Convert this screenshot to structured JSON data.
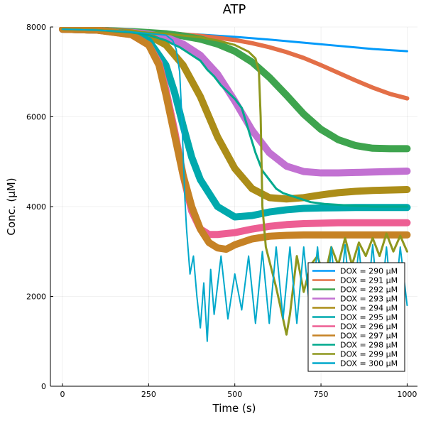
{
  "chart_data": {
    "type": "line",
    "title": "ATP",
    "xlabel": "Time (s)",
    "ylabel": "Conc. (µM)",
    "xlim": [
      -35,
      1030
    ],
    "ylim": [
      0,
      8000
    ],
    "xticks": [
      0,
      250,
      500,
      750,
      1000
    ],
    "yticks": [
      0,
      2000,
      4000,
      6000,
      8000
    ],
    "xtick_labels": [
      "0",
      "250",
      "500",
      "750",
      "1000"
    ],
    "ytick_labels": [
      "0",
      "2000",
      "4000",
      "6000",
      "8000"
    ],
    "grid": true,
    "legend_position": "bottom-right",
    "series": [
      {
        "name": "DOX = 290 µM",
        "color": "#009AFA",
        "width": 3,
        "x": [
          0,
          100,
          200,
          300,
          400,
          500,
          600,
          700,
          800,
          900,
          1000
        ],
        "y": [
          7950,
          7930,
          7900,
          7870,
          7830,
          7780,
          7720,
          7650,
          7580,
          7510,
          7460
        ]
      },
      {
        "name": "DOX = 291 µM",
        "color": "#E36F47",
        "width": 6,
        "x": [
          0,
          100,
          200,
          300,
          400,
          450,
          500,
          550,
          600,
          650,
          700,
          750,
          800,
          850,
          900,
          950,
          1000
        ],
        "y": [
          7950,
          7930,
          7910,
          7870,
          7800,
          7760,
          7710,
          7640,
          7550,
          7440,
          7310,
          7150,
          6980,
          6810,
          6650,
          6510,
          6410
        ]
      },
      {
        "name": "DOX = 292 µM",
        "color": "#3EA44E",
        "width": 10,
        "x": [
          0,
          100,
          200,
          300,
          350,
          400,
          450,
          500,
          550,
          600,
          650,
          700,
          750,
          800,
          850,
          900,
          950,
          1000
        ],
        "y": [
          7950,
          7930,
          7900,
          7850,
          7800,
          7730,
          7620,
          7460,
          7220,
          6880,
          6480,
          6060,
          5720,
          5490,
          5360,
          5300,
          5290,
          5290
        ]
      },
      {
        "name": "DOX = 293 µM",
        "color": "#C271D2",
        "width": 10,
        "x": [
          0,
          100,
          200,
          250,
          300,
          350,
          400,
          450,
          500,
          550,
          600,
          650,
          700,
          750,
          800,
          850,
          900,
          950,
          1000
        ],
        "y": [
          7950,
          7930,
          7880,
          7840,
          7770,
          7620,
          7370,
          6950,
          6350,
          5700,
          5200,
          4900,
          4780,
          4750,
          4750,
          4760,
          4770,
          4780,
          4790
        ]
      },
      {
        "name": "DOX = 294 µM",
        "color": "#AC8D18",
        "width": 10,
        "x": [
          0,
          100,
          200,
          250,
          300,
          350,
          400,
          450,
          500,
          550,
          600,
          650,
          700,
          750,
          800,
          850,
          900,
          950,
          1000
        ],
        "y": [
          7950,
          7930,
          7870,
          7810,
          7600,
          7150,
          6450,
          5550,
          4850,
          4400,
          4200,
          4170,
          4200,
          4260,
          4310,
          4340,
          4360,
          4370,
          4380
        ]
      },
      {
        "name": "DOX = 295 µM",
        "color": "#00A9AD",
        "width": 10,
        "x": [
          0,
          100,
          200,
          250,
          300,
          325,
          350,
          375,
          400,
          450,
          500,
          550,
          600,
          650,
          700,
          750,
          800,
          850,
          900,
          950,
          1000
        ],
        "y": [
          7950,
          7930,
          7840,
          7700,
          7150,
          6550,
          5800,
          5100,
          4600,
          4000,
          3770,
          3800,
          3880,
          3930,
          3960,
          3970,
          3975,
          3980,
          3980,
          3980,
          3980
        ]
      },
      {
        "name": "DOX = 296 µM",
        "color": "#ED5E93",
        "width": 10,
        "x": [
          0,
          100,
          200,
          250,
          280,
          300,
          325,
          350,
          375,
          400,
          425,
          450,
          500,
          550,
          600,
          650,
          700,
          750,
          800,
          850,
          900,
          950,
          1000
        ],
        "y": [
          7950,
          7930,
          7830,
          7600,
          7200,
          6600,
          5700,
          4700,
          3900,
          3500,
          3380,
          3380,
          3420,
          3500,
          3560,
          3600,
          3620,
          3630,
          3640,
          3640,
          3640,
          3640,
          3640
        ]
      },
      {
        "name": "DOX = 297 µM",
        "color": "#C68225",
        "width": 10,
        "x": [
          0,
          100,
          200,
          250,
          280,
          300,
          325,
          350,
          375,
          400,
          425,
          450,
          475,
          500,
          550,
          600,
          650,
          700,
          750,
          800,
          850,
          900,
          950,
          1000
        ],
        "y": [
          7950,
          7930,
          7830,
          7600,
          7150,
          6500,
          5600,
          4700,
          4000,
          3500,
          3200,
          3080,
          3050,
          3150,
          3280,
          3340,
          3360,
          3370,
          3370,
          3370,
          3370,
          3370,
          3370,
          3370
        ]
      },
      {
        "name": "DOX = 298 µM",
        "color": "#00A98D",
        "width": 3,
        "x": [
          0,
          100,
          200,
          250,
          300,
          320,
          340,
          360,
          380,
          400,
          420,
          440,
          460,
          480,
          500,
          520,
          540,
          560,
          580,
          600,
          620,
          640,
          660,
          680,
          700,
          720,
          740,
          760,
          780,
          800,
          820,
          840,
          860,
          880,
          900,
          920,
          940,
          960,
          980,
          1000
        ],
        "y": [
          7950,
          7930,
          7880,
          7820,
          7700,
          7620,
          7550,
          7450,
          7350,
          7250,
          7050,
          6900,
          6700,
          6550,
          6400,
          6200,
          5700,
          5200,
          4800,
          4600,
          4400,
          4300,
          4250,
          4200,
          4150,
          4100,
          4080,
          4060,
          4050,
          4040,
          4030,
          4020,
          4010,
          4010,
          4000,
          4000,
          4000,
          4000,
          4000,
          4000
        ]
      },
      {
        "name": "DOX = 299 µM",
        "color": "#8E971E",
        "width": 3,
        "x": [
          0,
          100,
          200,
          300,
          400,
          450,
          500,
          540,
          560,
          570,
          575,
          580,
          590,
          600,
          620,
          640,
          650,
          660,
          680,
          700,
          720,
          740,
          760,
          780,
          800,
          820,
          840,
          860,
          880,
          900,
          920,
          940,
          960,
          980,
          1000
        ],
        "y": [
          7950,
          7930,
          7900,
          7850,
          7770,
          7700,
          7600,
          7450,
          7300,
          7000,
          6000,
          4000,
          3100,
          2800,
          2200,
          1500,
          1150,
          1600,
          2900,
          2100,
          2700,
          2900,
          2400,
          3100,
          2700,
          3300,
          2700,
          3200,
          2900,
          3300,
          2900,
          3400,
          3000,
          3350,
          3000
        ]
      },
      {
        "name": "DOX = 300 µM",
        "color": "#00A8CB",
        "width": 2,
        "x": [
          0,
          100,
          200,
          300,
          320,
          330,
          340,
          345,
          350,
          355,
          360,
          365,
          370,
          380,
          390,
          400,
          410,
          420,
          430,
          440,
          460,
          480,
          500,
          520,
          540,
          560,
          580,
          600,
          620,
          640,
          660,
          680,
          700,
          720,
          740,
          760,
          780,
          800,
          820,
          840,
          860,
          880,
          900,
          920,
          940,
          960,
          980,
          1000
        ],
        "y": [
          7950,
          7930,
          7890,
          7820,
          7700,
          7500,
          7000,
          6200,
          5200,
          4200,
          3500,
          3000,
          2500,
          2900,
          2000,
          1300,
          2300,
          1000,
          2600,
          1600,
          2900,
          1500,
          2500,
          1700,
          2900,
          1400,
          3000,
          1400,
          3100,
          1500,
          3100,
          1400,
          3100,
          1500,
          3100,
          1400,
          3100,
          1500,
          3150,
          1500,
          3100,
          1500,
          3150,
          1500,
          3100,
          1500,
          3100,
          1800
        ]
      }
    ]
  }
}
